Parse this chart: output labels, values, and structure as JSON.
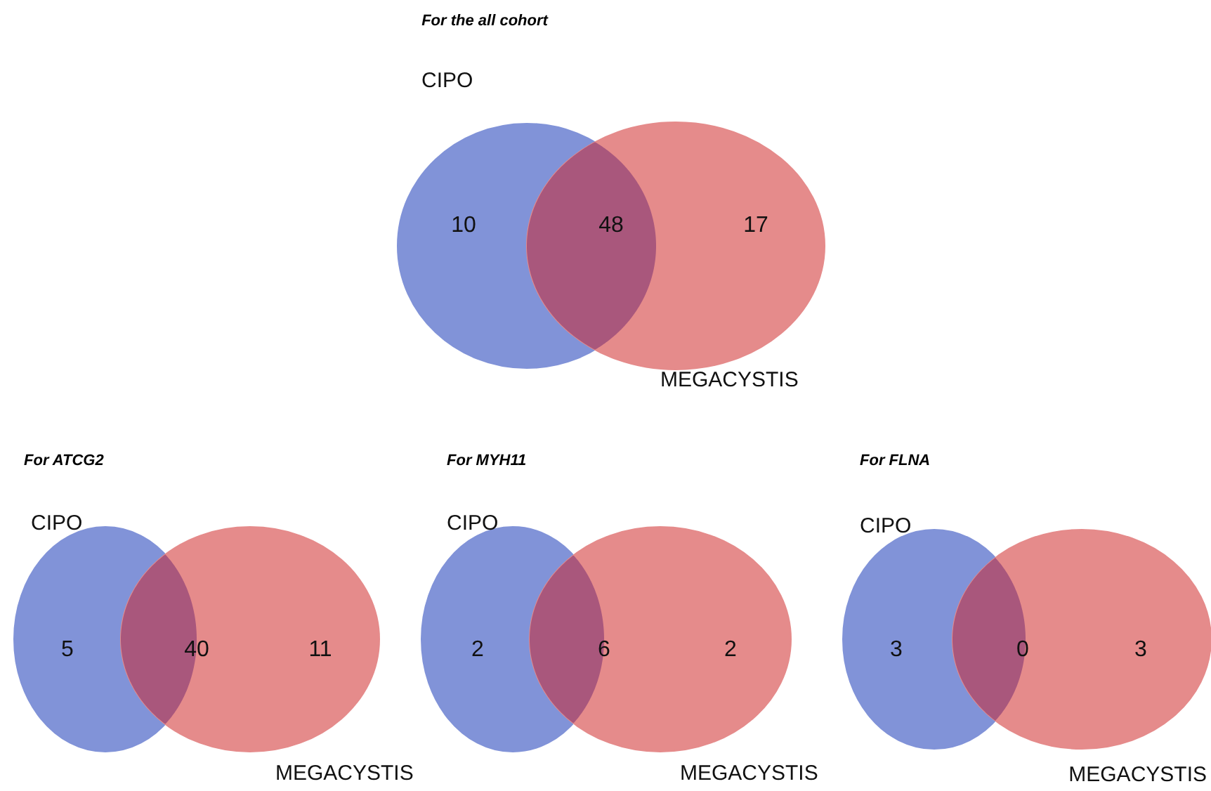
{
  "chart_data": [
    {
      "type": "other",
      "title": "For the all cohort",
      "categories": [
        null,
        null,
        null
      ],
      "values": [
        10,
        48,
        17
      ],
      "data_labels": true,
      "colors": [
        "#8193d8",
        "#a9577c",
        "#e58b8b"
      ],
      "annotations": [
        "CIPO",
        "MEGACYSTIS"
      ]
    },
    {
      "type": "other",
      "title": "For ATCG2",
      "categories": [
        null,
        null,
        null
      ],
      "values": [
        5,
        40,
        11
      ],
      "data_labels": true,
      "colors": [
        "#8193d8",
        "#a9577c",
        "#e58b8b"
      ],
      "annotations": [
        "CIPO",
        "MEGACYSTIS"
      ]
    },
    {
      "type": "other",
      "title": "For MYH11",
      "categories": [
        null,
        null,
        null
      ],
      "values": [
        2,
        6,
        2
      ],
      "data_labels": true,
      "colors": [
        "#8193d8",
        "#a9577c",
        "#e58b8b"
      ],
      "annotations": [
        "CIPO",
        "MEGACYSTIS"
      ]
    },
    {
      "type": "other",
      "title": "For FLNA",
      "categories": [
        null,
        null,
        null
      ],
      "values": [
        3,
        0,
        3
      ],
      "data_labels": true,
      "colors": [
        "#8193d8",
        "#a9577c",
        "#e58b8b"
      ],
      "annotations": [
        "CIPO",
        "MEGACYSTIS"
      ]
    }
  ]
}
